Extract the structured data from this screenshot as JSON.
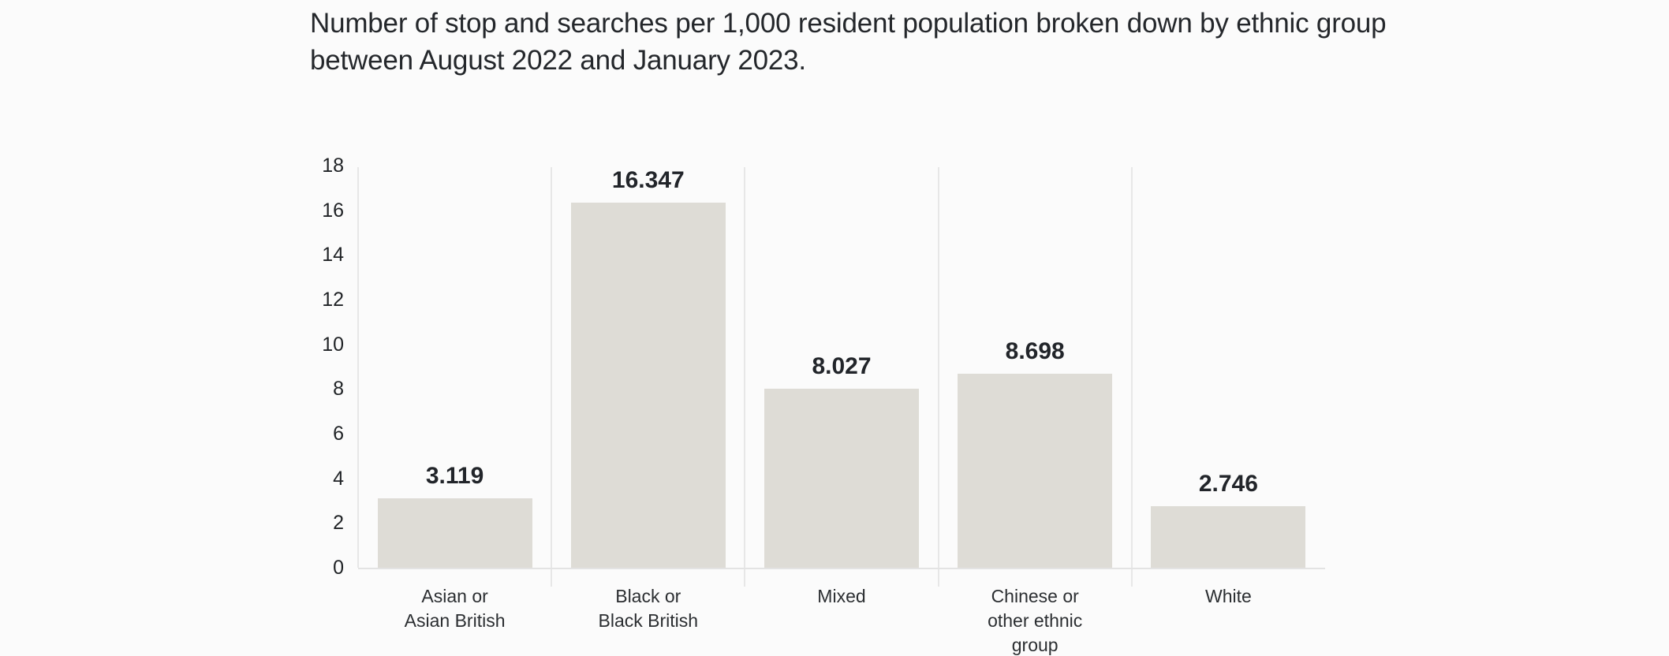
{
  "header": {
    "title": "Number of stop and searches per 1,000 resident population broken down by ethnic group\nbetween August 2022 and January 2023."
  },
  "chart_data": {
    "type": "bar",
    "title": "Number of stop and searches per 1,000 resident population broken down by ethnic group between August 2022 and January 2023.",
    "categories": [
      "Asian or\nAsian British",
      "Black or\nBlack British",
      "Mixed",
      "Chinese or\nother ethnic\ngroup",
      "White"
    ],
    "values": [
      3.119,
      16.347,
      8.027,
      8.698,
      2.746
    ],
    "value_labels": [
      "3.119",
      "16.347",
      "8.027",
      "8.698",
      "2.746"
    ],
    "xlabel": "",
    "ylabel": "",
    "ylim": [
      0,
      18
    ],
    "yticks": [
      0,
      2,
      4,
      6,
      8,
      10,
      12,
      14,
      16,
      18
    ],
    "grid": "vertical category separators only",
    "legend_position": "none",
    "colors": {
      "background": "#fbfbfb",
      "bar_fill": "#dedcd6",
      "axis_line": "#e7e7e7",
      "title_text": "#24272b",
      "value_text": "#22252a",
      "tick_text": "#1f2225",
      "category_text": "#2b2e31"
    }
  }
}
